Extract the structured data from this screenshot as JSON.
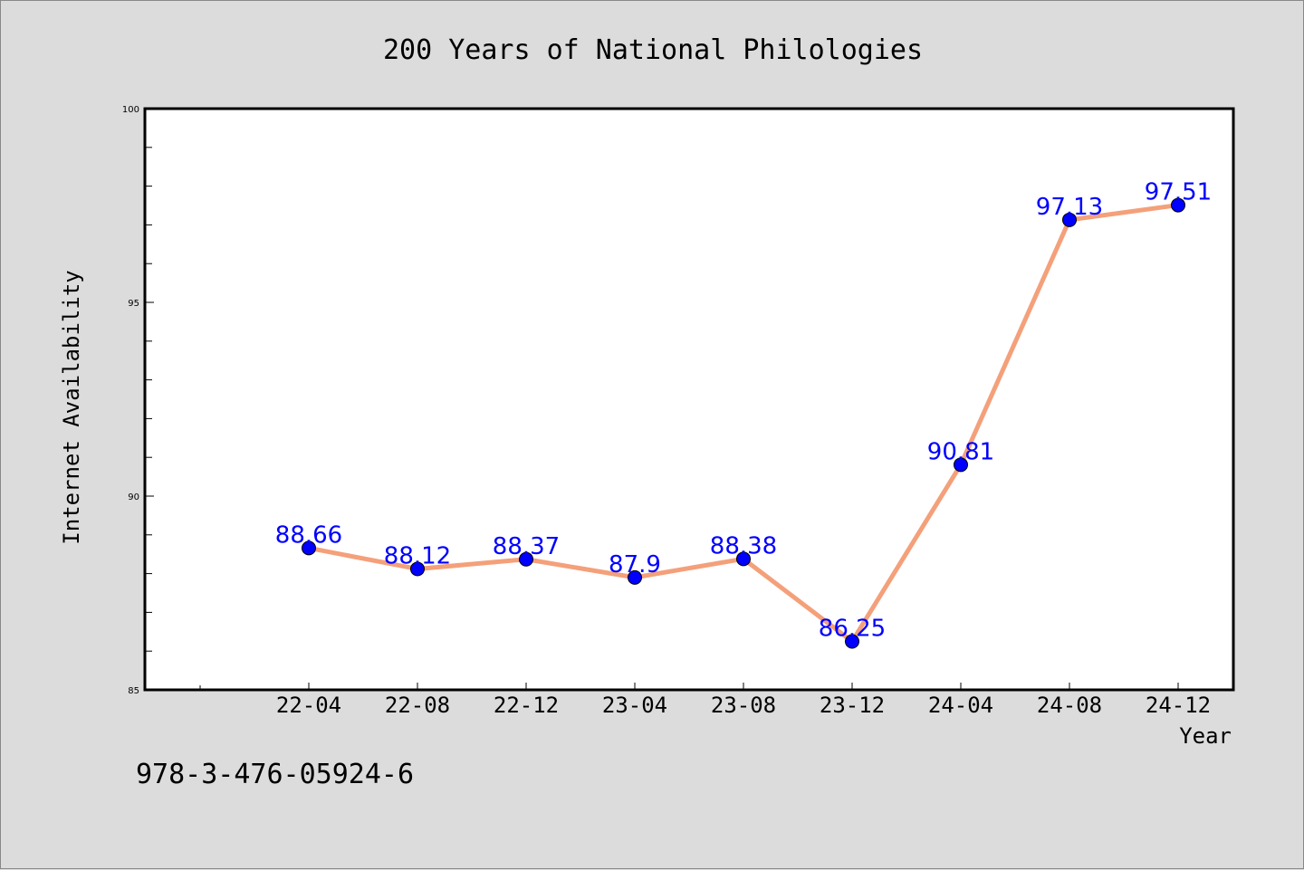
{
  "chart_data": {
    "type": "line",
    "title": "200 Years of National Philologies",
    "xlabel": "Year",
    "ylabel": "Internet Availability",
    "categories": [
      "22-04",
      "22-08",
      "22-12",
      "23-04",
      "23-08",
      "23-12",
      "24-04",
      "24-08",
      "24-12"
    ],
    "series": [
      {
        "values": [
          88.66,
          88.12,
          88.37,
          87.9,
          88.38,
          86.25,
          90.81,
          97.13,
          97.51
        ],
        "data_labels": [
          "88.66",
          "88.12",
          "88.37",
          "87.9",
          "88.38",
          "86.25",
          "90.81",
          "97.13",
          "97.51"
        ],
        "line_color": "#f4a07a",
        "marker_color": "#0000ff"
      }
    ],
    "ylim": [
      85,
      100
    ],
    "yticks": [
      "85",
      "90",
      "95",
      "100"
    ],
    "grid": false,
    "legend": "none"
  },
  "footer": {
    "isbn": "978-3-476-05924-6"
  }
}
